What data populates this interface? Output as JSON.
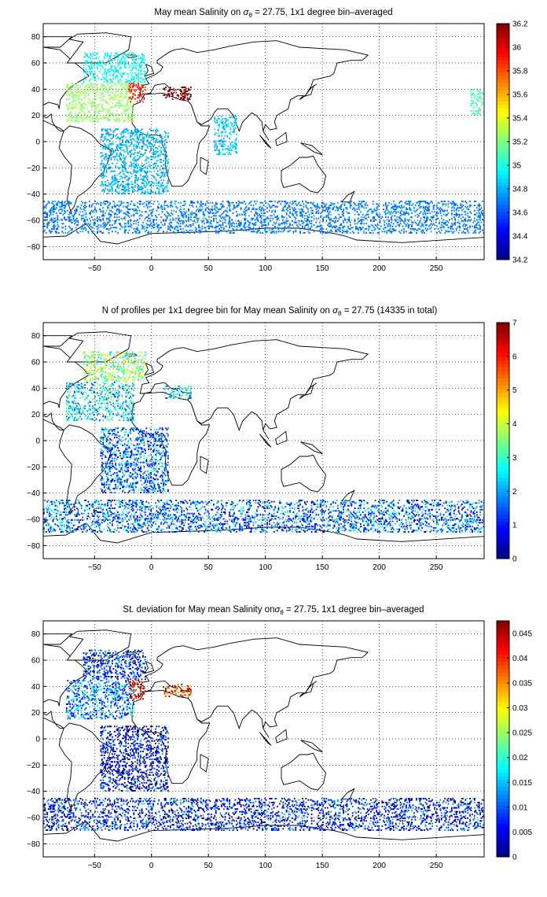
{
  "chart_data": [
    {
      "type": "heatmap",
      "title": "May mean Salinity on σθ = 27.75, 1x1 degree bin–averaged",
      "title_main": "May mean Salinity on ",
      "title_rest": " = 27.75, 1x1 degree bin–averaged",
      "xlabel": "",
      "ylabel": "",
      "xlim": [
        -95,
        292
      ],
      "ylim": [
        -90,
        90
      ],
      "xticks": [
        -50,
        0,
        50,
        100,
        150,
        200,
        250
      ],
      "yticks": [
        80,
        60,
        40,
        20,
        0,
        -20,
        -40,
        -60,
        -80
      ],
      "grid": "dotted",
      "colorbar": {
        "min": 34.2,
        "max": 36.2,
        "ticks": [
          36.2,
          36,
          35.8,
          35.6,
          35.4,
          35.2,
          35,
          34.8,
          34.6,
          34.4,
          34.2
        ],
        "colormap": "jet"
      },
      "regions": [
        {
          "name": "north-atlantic-subpolar",
          "x": [
            -60,
            -5
          ],
          "y": [
            45,
            68
          ],
          "value": 34.95
        },
        {
          "name": "north-atlantic-subtropical",
          "x": [
            -75,
            -15
          ],
          "y": [
            15,
            45
          ],
          "value": 35.25
        },
        {
          "name": "mediterranean-outflow",
          "x": [
            -20,
            -5
          ],
          "y": [
            30,
            45
          ],
          "value": 35.9
        },
        {
          "name": "mediterranean-sea",
          "x": [
            10,
            35
          ],
          "y": [
            32,
            42
          ],
          "value": 36.2
        },
        {
          "name": "south-atlantic",
          "x": [
            -45,
            15
          ],
          "y": [
            -40,
            10
          ],
          "value": 34.8
        },
        {
          "name": "indian-ocean-west",
          "x": [
            55,
            75
          ],
          "y": [
            -10,
            20
          ],
          "value": 34.85
        },
        {
          "name": "southern-ocean",
          "x": [
            -95,
            292
          ],
          "y": [
            -70,
            -45
          ],
          "value": 34.7
        },
        {
          "name": "north-pacific-east",
          "x": [
            280,
            292
          ],
          "y": [
            20,
            40
          ],
          "value": 35.1
        }
      ]
    },
    {
      "type": "heatmap",
      "title": "N of profiles per 1x1 degree bin for May mean Salinity on σθ = 27.75 (14335 in total)",
      "title_main": "N of profiles per 1x1 degree bin for May mean Salinity on ",
      "title_rest": " = 27.75 (14335 in total)",
      "total_profiles": 14335,
      "xlabel": "",
      "ylabel": "",
      "xlim": [
        -95,
        292
      ],
      "ylim": [
        -90,
        90
      ],
      "xticks": [
        -50,
        0,
        50,
        100,
        150,
        200,
        250
      ],
      "yticks": [
        80,
        60,
        40,
        20,
        0,
        -20,
        -40,
        -60,
        -80
      ],
      "grid": "dotted",
      "colorbar": {
        "min": 0,
        "max": 7,
        "ticks": [
          7,
          6,
          5,
          4,
          3,
          2,
          1,
          0
        ],
        "colormap": "jet"
      },
      "regions": [
        {
          "name": "north-atlantic-subpolar",
          "x": [
            -60,
            -5
          ],
          "y": [
            45,
            68
          ],
          "value": 3.5
        },
        {
          "name": "north-atlantic-subtropical",
          "x": [
            -75,
            -15
          ],
          "y": [
            15,
            45
          ],
          "value": 2.5
        },
        {
          "name": "mediterranean-sea",
          "x": [
            10,
            35
          ],
          "y": [
            32,
            42
          ],
          "value": 2.5
        },
        {
          "name": "south-atlantic",
          "x": [
            -45,
            15
          ],
          "y": [
            -40,
            10
          ],
          "value": 1.5
        },
        {
          "name": "southern-ocean",
          "x": [
            -95,
            292
          ],
          "y": [
            -70,
            -45
          ],
          "value": 1.5
        }
      ]
    },
    {
      "type": "heatmap",
      "title": "St. deviation for May mean Salinity onσθ = 27.75, 1x1 degree bin–averaged",
      "title_main": "St. deviation for May mean Salinity on",
      "title_rest": " = 27.75, 1x1 degree bin–averaged",
      "xlabel": "",
      "ylabel": "",
      "xlim": [
        -95,
        292
      ],
      "ylim": [
        -90,
        90
      ],
      "xticks": [
        -50,
        0,
        50,
        100,
        150,
        200,
        250
      ],
      "yticks": [
        80,
        60,
        40,
        20,
        0,
        -20,
        -40,
        -60,
        -80
      ],
      "grid": "dotted",
      "colorbar": {
        "min": 0,
        "max": 0.0475,
        "ticks": [
          0.045,
          0.04,
          0.035,
          0.03,
          0.025,
          0.02,
          0.015,
          0.01,
          0.005,
          0
        ],
        "colormap": "jet"
      },
      "regions": [
        {
          "name": "north-atlantic-subpolar",
          "x": [
            -60,
            -5
          ],
          "y": [
            45,
            68
          ],
          "value": 0.006
        },
        {
          "name": "north-atlantic-subtropical",
          "x": [
            -75,
            -15
          ],
          "y": [
            15,
            45
          ],
          "value": 0.012
        },
        {
          "name": "mediterranean-outflow",
          "x": [
            -20,
            -5
          ],
          "y": [
            30,
            45
          ],
          "value": 0.045
        },
        {
          "name": "mediterranean-sea",
          "x": [
            10,
            35
          ],
          "y": [
            32,
            42
          ],
          "value": 0.04
        },
        {
          "name": "south-atlantic",
          "x": [
            -45,
            15
          ],
          "y": [
            -40,
            10
          ],
          "value": 0.004
        },
        {
          "name": "southern-ocean",
          "x": [
            -95,
            292
          ],
          "y": [
            -70,
            -45
          ],
          "value": 0.006
        }
      ]
    }
  ]
}
